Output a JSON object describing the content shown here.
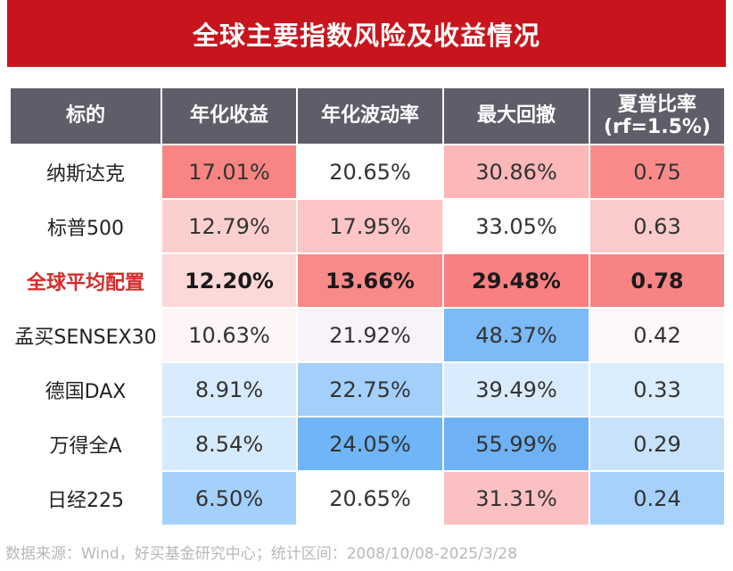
{
  "title": "全球主要指数风险及收益情况",
  "headers": {
    "target": "标的",
    "annual_return": "年化收益",
    "annual_volatility": "年化波动率",
    "max_drawdown": "最大回撤",
    "sharpe_line1": "夏普比率",
    "sharpe_line2": "(rf=1.5%)"
  },
  "rows": [
    {
      "name": "纳斯达克",
      "return": "17.01%",
      "volatility": "20.65%",
      "drawdown": "30.86%",
      "sharpe": "0.75",
      "colors": {
        "return": "#f88584",
        "volatility": "#ffffff",
        "drawdown": "#fcb8b9",
        "sharpe": "#fb8b8b"
      }
    },
    {
      "name": "标普500",
      "return": "12.79%",
      "volatility": "17.95%",
      "drawdown": "33.05%",
      "sharpe": "0.63",
      "colors": {
        "return": "#fccfcf",
        "volatility": "#fdc5c6",
        "drawdown": "#ffffff",
        "sharpe": "#fccbcb"
      }
    },
    {
      "name": "全球平均配置",
      "return": "12.20%",
      "volatility": "13.66%",
      "drawdown": "29.48%",
      "sharpe": "0.78",
      "colors": {
        "return": "#fdd8d8",
        "volatility": "#f98a8a",
        "drawdown": "#f88080",
        "sharpe": "#f88384"
      }
    },
    {
      "name": "孟买SENSEX30",
      "return": "10.63%",
      "volatility": "21.92%",
      "drawdown": "48.37%",
      "sharpe": "0.42",
      "colors": {
        "return": "#fdf5f6",
        "volatility": "#f7f3f8",
        "drawdown": "#7cbaf8",
        "sharpe": "#fdf7f8"
      }
    },
    {
      "name": "德国DAX",
      "return": "8.91%",
      "volatility": "22.75%",
      "drawdown": "39.49%",
      "sharpe": "0.33",
      "colors": {
        "return": "#d7ebfc",
        "volatility": "#a3d0fb",
        "drawdown": "#d9ecfd",
        "sharpe": "#daedfd"
      }
    },
    {
      "name": "万得全A",
      "return": "8.54%",
      "volatility": "24.05%",
      "drawdown": "55.99%",
      "sharpe": "0.29",
      "colors": {
        "return": "#d6eafd",
        "volatility": "#6fb5f7",
        "drawdown": "#6eb2f5",
        "sharpe": "#c8e2fb"
      }
    },
    {
      "name": "日经225",
      "return": "6.50%",
      "volatility": "20.65%",
      "drawdown": "31.31%",
      "sharpe": "0.24",
      "colors": {
        "return": "#a4d1fb",
        "volatility": "#ffffff",
        "drawdown": "#fbc1c2",
        "sharpe": "#a5d1fb"
      }
    }
  ],
  "highlight_row_index": 2,
  "colors": {
    "title_bg": "#c8151d",
    "header_bg": "#5d5e69",
    "highlight_text": "#d52b2b"
  },
  "source": "数据来源：Wind，好买基金研究中心；统计区间：2008/10/08-2025/3/28"
}
